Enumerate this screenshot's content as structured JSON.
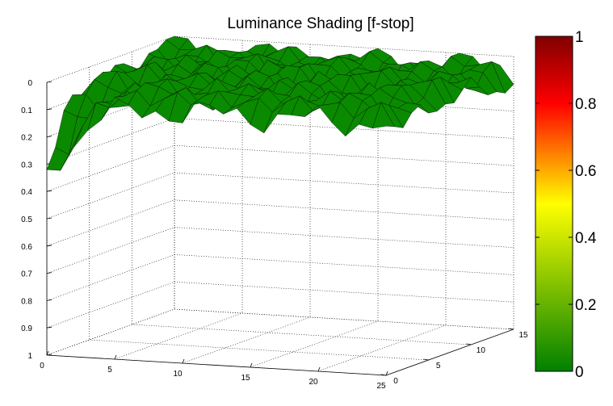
{
  "chart_data": {
    "type": "surface3d",
    "title": "Luminance Shading [f-stop]",
    "x_ticks": [
      "0",
      "5",
      "10",
      "15",
      "20",
      "25"
    ],
    "y_ticks": [
      "0",
      "5",
      "10",
      "15"
    ],
    "z_ticks": [
      "0",
      "0.1",
      "0.2",
      "0.3",
      "0.4",
      "0.5",
      "0.6",
      "0.7",
      "0.8",
      "0.9",
      "1"
    ],
    "xlim": [
      0,
      25
    ],
    "ylim": [
      0,
      15
    ],
    "zlim": [
      0,
      1
    ],
    "z_axis_direction": "reversed",
    "grid": true,
    "surface_color": "#0a8a00",
    "surface_edge_color": "#000000",
    "surface_z_range": [
      0,
      0.32
    ],
    "surface_shape": "mostly flat near z 0.05-0.1, dropping to about 0.32 at the x=0 near corner",
    "colorbar": {
      "ticks": [
        "0",
        "0.2",
        "0.4",
        "0.6",
        "0.8",
        "1"
      ],
      "range": [
        0,
        1
      ],
      "colors": [
        "#008000",
        "#ffff00",
        "#ff0000",
        "#800000"
      ]
    }
  }
}
